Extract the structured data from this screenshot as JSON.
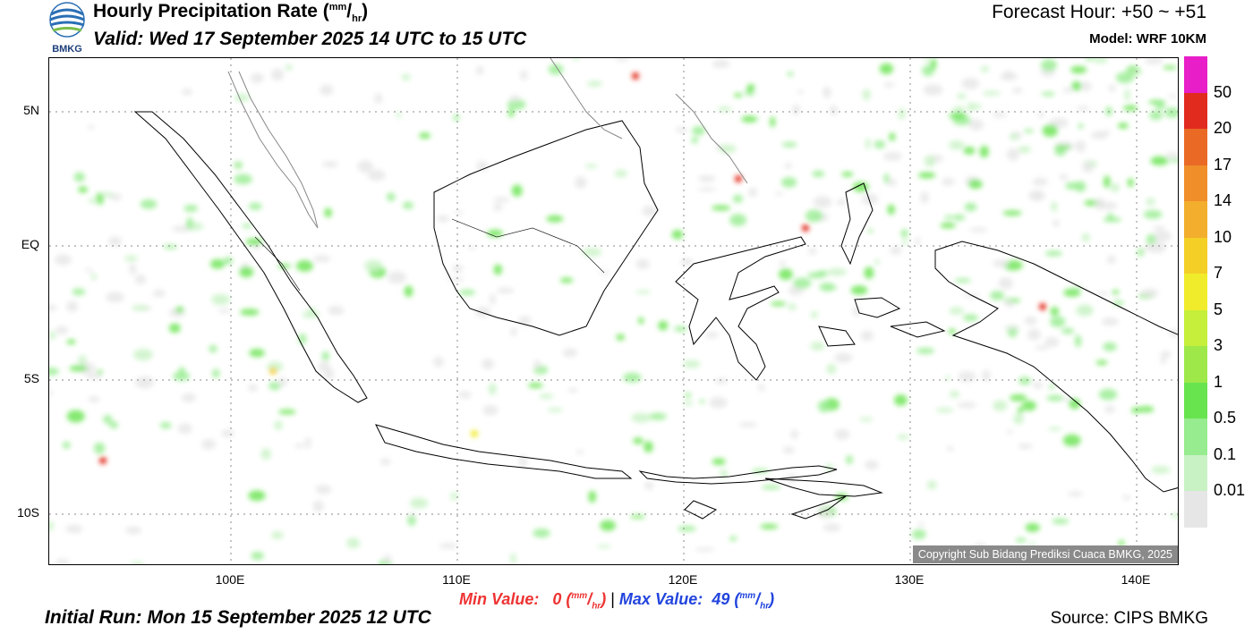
{
  "header": {
    "logo_text": "BMKG",
    "title_prefix": "Hourly Precipitation Rate (",
    "title_unit_num": "mm",
    "title_unit_sep": "/",
    "title_unit_den": "hr",
    "title_suffix": ")",
    "valid": "Valid: Wed 17 September 2025 14 UTC to 15 UTC",
    "forecast_hour": "Forecast Hour: +50 ~ +51",
    "model": "Model: WRF 10KM"
  },
  "map": {
    "lat_labels": [
      "5N",
      "EQ",
      "5S",
      "10S"
    ],
    "lon_labels": [
      "100E",
      "110E",
      "120E",
      "130E",
      "140E"
    ],
    "copyright": "Copyright Sub Bidang Prediksi Cuaca BMKG, 2025"
  },
  "colorbar": {
    "labels": [
      "50",
      "20",
      "17",
      "14",
      "10",
      "7",
      "5",
      "3",
      "1",
      "0.5",
      "0.1",
      "0.01"
    ],
    "colors": [
      "#e81ec8",
      "#e22b1f",
      "#ea6a25",
      "#f08e2a",
      "#f2ae2c",
      "#f4cf26",
      "#f1ec2b",
      "#c5ef3a",
      "#9ee84a",
      "#67e44e",
      "#96ec8e",
      "#c8f2c4",
      "#e6e6e6"
    ]
  },
  "stats": {
    "min_label": "Min Value:",
    "min_value": "0",
    "max_label": "Max Value:",
    "max_value": "49",
    "unit_open": "(",
    "unit_num": "mm",
    "unit_sep": "/",
    "unit_den": "hr",
    "unit_close": ")",
    "separator": "|"
  },
  "footer": {
    "initial_run": "Initial Run: Mon 15 September 2025 12 UTC",
    "source": "Source: CIPS BMKG"
  }
}
